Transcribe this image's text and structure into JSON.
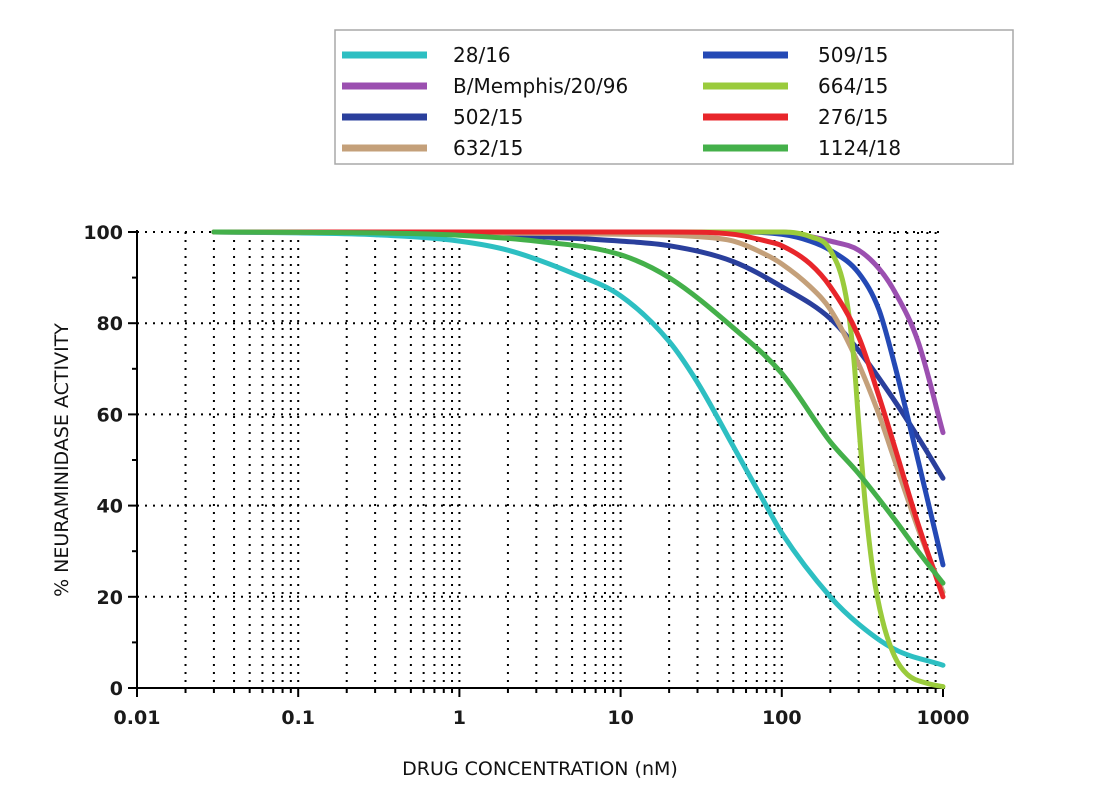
{
  "chart_data": {
    "type": "line",
    "title": "",
    "xlabel": "DRUG CONCENTRATION (nM)",
    "ylabel": "% NEURAMINIDASE ACTIVITY",
    "xscale": "log",
    "xlim": [
      0.01,
      1000
    ],
    "ylim": [
      0,
      100
    ],
    "x_ticks": [
      "0.01",
      "0.1",
      "1",
      "10",
      "100",
      "1000"
    ],
    "y_ticks": [
      "0",
      "20",
      "40",
      "60",
      "80",
      "100"
    ],
    "grid": "dotted",
    "legend_position": "top",
    "series": [
      {
        "name": "28/16",
        "color": "#2dbfc2",
        "points": [
          [
            0.03,
            100
          ],
          [
            0.1,
            99.8
          ],
          [
            0.3,
            99.4
          ],
          [
            1,
            98
          ],
          [
            2,
            96
          ],
          [
            5,
            91
          ],
          [
            10,
            86
          ],
          [
            20,
            76
          ],
          [
            30,
            67
          ],
          [
            50,
            53
          ],
          [
            80,
            40
          ],
          [
            100,
            34
          ],
          [
            200,
            20
          ],
          [
            300,
            14
          ],
          [
            500,
            8.5
          ],
          [
            1000,
            5
          ]
        ]
      },
      {
        "name": "B/Memphis/20/96",
        "color": "#9b4fb0",
        "points": [
          [
            0.03,
            100
          ],
          [
            10,
            100
          ],
          [
            100,
            100
          ],
          [
            150,
            99
          ],
          [
            200,
            98
          ],
          [
            300,
            96
          ],
          [
            400,
            92
          ],
          [
            500,
            87
          ],
          [
            700,
            76
          ],
          [
            1000,
            56
          ]
        ]
      },
      {
        "name": "502/15",
        "color": "#2a3f9c",
        "points": [
          [
            0.03,
            100
          ],
          [
            1,
            99.7
          ],
          [
            3,
            99
          ],
          [
            10,
            98
          ],
          [
            20,
            97
          ],
          [
            50,
            93.5
          ],
          [
            100,
            88
          ],
          [
            200,
            81
          ],
          [
            300,
            74
          ],
          [
            500,
            63
          ],
          [
            700,
            55
          ],
          [
            1000,
            46
          ]
        ]
      },
      {
        "name": "632/15",
        "color": "#c4a07a",
        "points": [
          [
            0.03,
            100
          ],
          [
            10,
            99.5
          ],
          [
            30,
            99
          ],
          [
            50,
            98
          ],
          [
            80,
            95
          ],
          [
            100,
            93
          ],
          [
            150,
            88
          ],
          [
            200,
            83
          ],
          [
            300,
            71
          ],
          [
            400,
            60
          ],
          [
            500,
            50
          ],
          [
            700,
            35
          ],
          [
            1000,
            21
          ]
        ]
      },
      {
        "name": "509/15",
        "color": "#2449b5",
        "points": [
          [
            0.03,
            100
          ],
          [
            50,
            100
          ],
          [
            100,
            99.5
          ],
          [
            150,
            98
          ],
          [
            200,
            96
          ],
          [
            300,
            91
          ],
          [
            400,
            83
          ],
          [
            500,
            71
          ],
          [
            700,
            50
          ],
          [
            1000,
            27
          ]
        ]
      },
      {
        "name": "664/15",
        "color": "#9acb3c",
        "points": [
          [
            0.03,
            100
          ],
          [
            100,
            100
          ],
          [
            150,
            99
          ],
          [
            200,
            96
          ],
          [
            250,
            86
          ],
          [
            280,
            72
          ],
          [
            300,
            58
          ],
          [
            330,
            40
          ],
          [
            370,
            25
          ],
          [
            420,
            15
          ],
          [
            500,
            7
          ],
          [
            600,
            3
          ],
          [
            800,
            1
          ],
          [
            1000,
            0.3
          ]
        ]
      },
      {
        "name": "276/15",
        "color": "#e8262b",
        "points": [
          [
            0.03,
            100
          ],
          [
            20,
            100
          ],
          [
            50,
            99.5
          ],
          [
            80,
            98
          ],
          [
            100,
            97
          ],
          [
            150,
            93
          ],
          [
            200,
            88
          ],
          [
            300,
            77
          ],
          [
            400,
            64
          ],
          [
            500,
            53
          ],
          [
            700,
            36
          ],
          [
            1000,
            20
          ]
        ]
      },
      {
        "name": "1124/18",
        "color": "#44b04a",
        "points": [
          [
            0.03,
            100
          ],
          [
            0.3,
            99.8
          ],
          [
            1,
            99.3
          ],
          [
            3,
            98
          ],
          [
            10,
            95
          ],
          [
            20,
            90
          ],
          [
            50,
            79
          ],
          [
            100,
            69
          ],
          [
            200,
            54
          ],
          [
            300,
            47
          ],
          [
            500,
            37
          ],
          [
            700,
            30
          ],
          [
            1000,
            23
          ]
        ]
      }
    ]
  }
}
